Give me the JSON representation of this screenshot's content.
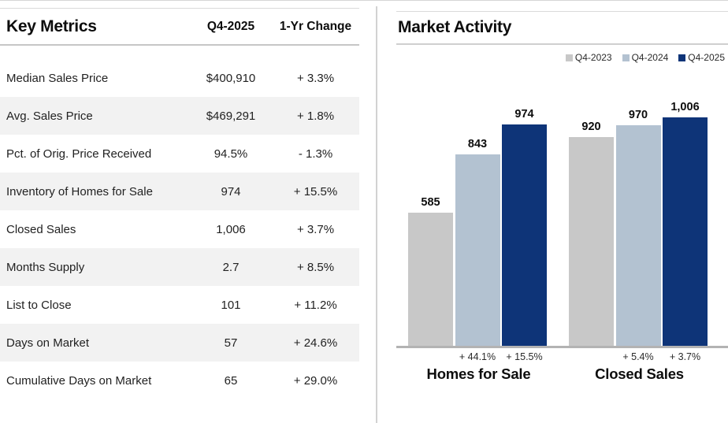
{
  "left_panel": {
    "title": "Key Metrics",
    "columns": {
      "value": "Q4-2025",
      "change": "1-Yr Change"
    },
    "rows": [
      {
        "label": "Median Sales Price",
        "value": "$400,910",
        "change": "+ 3.3%"
      },
      {
        "label": "Avg. Sales Price",
        "value": "$469,291",
        "change": "+ 1.8%"
      },
      {
        "label": "Pct. of Orig. Price Received",
        "value": "94.5%",
        "change": "- 1.3%"
      },
      {
        "label": "Inventory of Homes for Sale",
        "value": "974",
        "change": "+ 15.5%"
      },
      {
        "label": "Closed Sales",
        "value": "1,006",
        "change": "+ 3.7%"
      },
      {
        "label": "Months Supply",
        "value": "2.7",
        "change": "+ 8.5%"
      },
      {
        "label": "List to Close",
        "value": "101",
        "change": "+ 11.2%"
      },
      {
        "label": "Days on Market",
        "value": "57",
        "change": "+ 24.6%"
      },
      {
        "label": "Cumulative Days on Market",
        "value": "65",
        "change": "+ 29.0%"
      }
    ]
  },
  "right_panel": {
    "title": "Market Activity"
  },
  "chart_data": {
    "type": "bar",
    "title": "Market Activity",
    "categories": [
      "Homes for Sale",
      "Closed Sales"
    ],
    "series": [
      {
        "name": "Q4-2023",
        "color": "#c8c8c8",
        "values": [
          585,
          920
        ],
        "pct_change": [
          "",
          ""
        ]
      },
      {
        "name": "Q4-2024",
        "color": "#b3c2d1",
        "values": [
          843,
          970
        ],
        "pct_change": [
          "+ 44.1%",
          "+ 5.4%"
        ]
      },
      {
        "name": "Q4-2025",
        "color": "#0e3478",
        "values": [
          974,
          1006
        ],
        "pct_change": [
          "+ 15.5%",
          "+ 3.7%"
        ]
      }
    ],
    "value_labels": [
      [
        "585",
        "920"
      ],
      [
        "843",
        "970"
      ],
      [
        "974",
        "1,006"
      ]
    ],
    "legend_position": "top-right",
    "ylim": [
      0,
      1050
    ],
    "grid": false,
    "baseline": true
  },
  "colors": {
    "q4_2023": "#c8c8c8",
    "q4_2024": "#b3c2d1",
    "q4_2025": "#0e3478",
    "row_alt_bg": "#f2f2f2",
    "rule": "#c6c6c6",
    "baseline": "#b3b3b3"
  }
}
